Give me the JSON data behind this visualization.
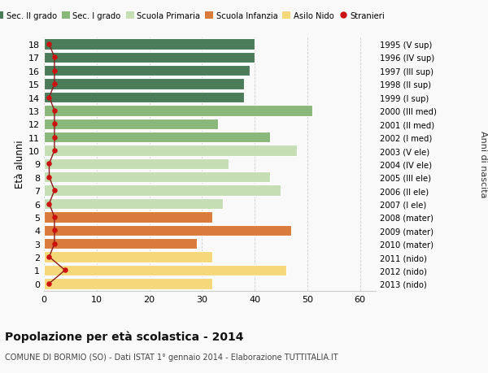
{
  "ages": [
    18,
    17,
    16,
    15,
    14,
    13,
    12,
    11,
    10,
    9,
    8,
    7,
    6,
    5,
    4,
    3,
    2,
    1,
    0
  ],
  "years": [
    "1995 (V sup)",
    "1996 (IV sup)",
    "1997 (III sup)",
    "1998 (II sup)",
    "1999 (I sup)",
    "2000 (III med)",
    "2001 (II med)",
    "2002 (I med)",
    "2003 (V ele)",
    "2004 (IV ele)",
    "2005 (III ele)",
    "2006 (II ele)",
    "2007 (I ele)",
    "2008 (mater)",
    "2009 (mater)",
    "2010 (mater)",
    "2011 (nido)",
    "2012 (nido)",
    "2013 (nido)"
  ],
  "bar_values": [
    40,
    40,
    39,
    38,
    38,
    51,
    33,
    43,
    48,
    35,
    43,
    45,
    34,
    32,
    47,
    29,
    32,
    46,
    32
  ],
  "bar_colors": [
    "#4a7c59",
    "#4a7c59",
    "#4a7c59",
    "#4a7c59",
    "#4a7c59",
    "#8ab87a",
    "#8ab87a",
    "#8ab87a",
    "#c5deb4",
    "#c5deb4",
    "#c5deb4",
    "#c5deb4",
    "#c5deb4",
    "#d97b3a",
    "#d97b3a",
    "#d97b3a",
    "#f5d87a",
    "#f5d87a",
    "#f5d87a"
  ],
  "stranieri_values": [
    1,
    2,
    2,
    2,
    1,
    2,
    2,
    2,
    2,
    1,
    1,
    2,
    1,
    2,
    2,
    2,
    1,
    4,
    1
  ],
  "legend_labels": [
    "Sec. II grado",
    "Sec. I grado",
    "Scuola Primaria",
    "Scuola Infanzia",
    "Asilo Nido",
    "Stranieri"
  ],
  "legend_colors": [
    "#4a7c59",
    "#8ab87a",
    "#c5deb4",
    "#d97b3a",
    "#f5d87a",
    "#cc1111"
  ],
  "xlabel_vals": [
    0,
    10,
    20,
    30,
    40,
    50,
    60
  ],
  "xlim": [
    0,
    63
  ],
  "ylim": [
    -0.55,
    18.55
  ],
  "ylabel": "Età alunni",
  "right_label": "Anni di nascita",
  "title_bold": "Popolazione per età scolastica - 2014",
  "subtitle": "COMUNE DI BORMIO (SO) - Dati ISTAT 1° gennaio 2014 - Elaborazione TUTTITALIA.IT",
  "bg_color": "#f9f9f9",
  "grid_color": "#cccccc",
  "bar_height": 0.82
}
